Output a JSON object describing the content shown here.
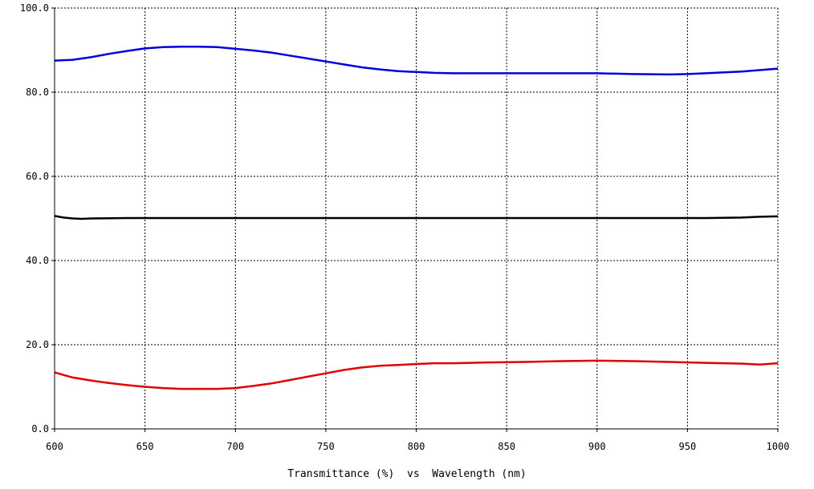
{
  "chart_data": {
    "type": "line",
    "title": "Transmittance (%)  vs  Wavelength (nm)",
    "xlabel": "",
    "ylabel": "",
    "xlim": [
      600,
      1000
    ],
    "ylim": [
      0,
      100
    ],
    "x_ticks": [
      600,
      650,
      700,
      750,
      800,
      850,
      900,
      950,
      1000
    ],
    "x_tick_labels": [
      "600",
      "650",
      "700",
      "750",
      "800",
      "850",
      "900",
      "950",
      "1000"
    ],
    "y_ticks": [
      0,
      20,
      40,
      60,
      80,
      100
    ],
    "y_tick_labels": [
      "0.0",
      "20.0",
      "40.0",
      "60.0",
      "80.0",
      "100.0"
    ],
    "grid": true,
    "grid_style": "dotted",
    "legend": "none",
    "series": [
      {
        "color": "#0000dd",
        "x": [
          600,
          610,
          620,
          630,
          640,
          650,
          660,
          670,
          680,
          690,
          700,
          710,
          720,
          730,
          740,
          750,
          760,
          770,
          780,
          790,
          800,
          810,
          820,
          840,
          860,
          880,
          900,
          920,
          940,
          950,
          960,
          980,
          1000
        ],
        "y": [
          87.5,
          87.7,
          88.3,
          89.1,
          89.8,
          90.4,
          90.7,
          90.8,
          90.8,
          90.7,
          90.3,
          89.9,
          89.4,
          88.7,
          88.0,
          87.3,
          86.6,
          85.9,
          85.4,
          85.0,
          84.8,
          84.6,
          84.5,
          84.5,
          84.5,
          84.5,
          84.5,
          84.3,
          84.2,
          84.3,
          84.5,
          84.9,
          85.6
        ]
      },
      {
        "color": "#000000",
        "x": [
          600,
          605,
          610,
          615,
          620,
          640,
          680,
          720,
          800,
          900,
          960,
          980,
          990,
          1000
        ],
        "y": [
          50.6,
          50.2,
          50.0,
          49.9,
          50.0,
          50.1,
          50.1,
          50.1,
          50.1,
          50.1,
          50.1,
          50.2,
          50.4,
          50.5
        ]
      },
      {
        "color": "#e00000",
        "x": [
          600,
          610,
          620,
          630,
          640,
          650,
          660,
          670,
          680,
          690,
          700,
          710,
          720,
          730,
          740,
          750,
          760,
          770,
          780,
          790,
          800,
          810,
          820,
          840,
          860,
          880,
          900,
          920,
          940,
          950,
          960,
          980,
          990,
          1000
        ],
        "y": [
          13.4,
          12.2,
          11.5,
          10.9,
          10.4,
          10.0,
          9.7,
          9.5,
          9.5,
          9.5,
          9.7,
          10.2,
          10.8,
          11.6,
          12.4,
          13.2,
          14.0,
          14.6,
          15.0,
          15.2,
          15.4,
          15.6,
          15.6,
          15.8,
          15.9,
          16.1,
          16.2,
          16.1,
          15.9,
          15.8,
          15.7,
          15.5,
          15.3,
          15.6
        ]
      }
    ]
  }
}
